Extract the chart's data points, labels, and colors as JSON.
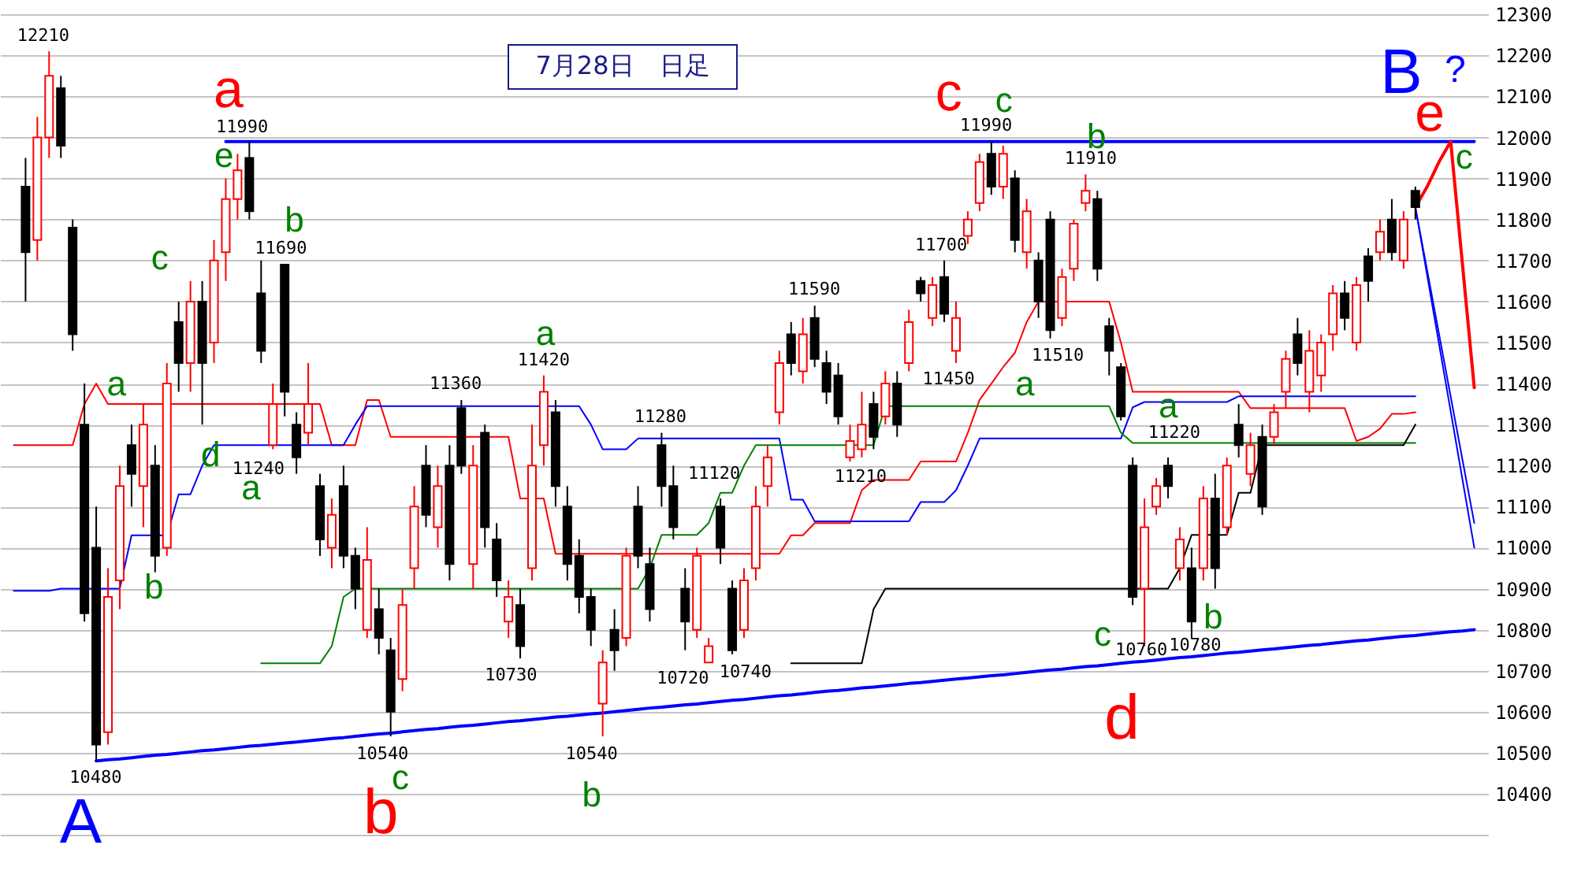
{
  "chart_data": {
    "type": "candlestick",
    "title": "7月28日　日足",
    "categories": [
      null,
      null,
      null,
      null,
      null,
      null,
      null,
      null,
      null,
      null,
      null,
      null,
      null,
      null,
      null,
      null,
      null,
      null,
      null,
      null,
      null,
      null,
      null,
      null,
      null,
      null,
      null,
      null,
      null,
      null,
      null,
      null,
      null,
      null,
      null,
      null,
      null,
      null,
      null,
      null,
      null,
      null,
      null,
      null,
      null,
      null,
      null,
      null,
      null,
      null,
      null,
      null,
      null,
      null,
      null,
      null,
      null,
      null,
      null,
      null,
      null,
      null,
      null,
      null,
      null,
      null,
      null,
      null,
      null,
      null,
      null,
      null,
      null,
      null,
      null,
      null,
      null,
      null,
      null,
      null,
      null,
      null,
      null,
      null,
      null,
      null,
      null,
      null,
      null,
      null,
      null,
      null,
      null,
      null,
      null,
      null,
      null,
      null,
      null,
      null,
      null,
      null,
      null,
      null,
      null,
      null,
      null,
      null,
      null,
      null,
      null,
      null,
      null,
      null,
      null,
      null,
      null,
      null,
      null,
      null,
      null,
      null,
      null,
      null,
      null
    ],
    "ohlc": [
      null,
      [
        11880,
        11950,
        11600,
        11720
      ],
      [
        11750,
        12050,
        11700,
        12000
      ],
      [
        12000,
        12210,
        11950,
        12150
      ],
      [
        12120,
        12150,
        11950,
        11980
      ],
      [
        11780,
        11800,
        11480,
        11520
      ],
      [
        11300,
        11400,
        10820,
        10840
      ],
      [
        11000,
        11100,
        10480,
        10520
      ],
      [
        10550,
        10950,
        10520,
        10880
      ],
      [
        10920,
        11200,
        10850,
        11150
      ],
      [
        11250,
        11300,
        11100,
        11180
      ],
      [
        11150,
        11350,
        11050,
        11300
      ],
      [
        11200,
        11250,
        10940,
        10980
      ],
      [
        11000,
        11450,
        10980,
        11400
      ],
      [
        11550,
        11600,
        11380,
        11450
      ],
      [
        11450,
        11650,
        11380,
        11600
      ],
      [
        11600,
        11650,
        11300,
        11450
      ],
      [
        11500,
        11750,
        11450,
        11700
      ],
      [
        11720,
        11900,
        11650,
        11850
      ],
      [
        11850,
        11960,
        11800,
        11920
      ],
      [
        11950,
        11990,
        11800,
        11820
      ],
      [
        11620,
        11700,
        11450,
        11480
      ],
      [
        11250,
        11400,
        11240,
        11350
      ],
      [
        11690,
        11690,
        11320,
        11380
      ],
      [
        11300,
        11330,
        11180,
        11220
      ],
      [
        11280,
        11450,
        11250,
        11350
      ],
      [
        11150,
        11180,
        10980,
        11020
      ],
      [
        11000,
        11120,
        10950,
        11080
      ],
      [
        11150,
        11200,
        10950,
        10980
      ],
      [
        10980,
        11000,
        10850,
        10900
      ],
      [
        10800,
        11050,
        10780,
        10970
      ],
      [
        10850,
        10900,
        10740,
        10780
      ],
      [
        10750,
        10780,
        10540,
        10600
      ],
      [
        10680,
        10900,
        10650,
        10860
      ],
      [
        10950,
        11150,
        10900,
        11100
      ],
      [
        11200,
        11250,
        11050,
        11080
      ],
      [
        11050,
        11200,
        11000,
        11150
      ],
      [
        11200,
        11250,
        10920,
        10960
      ],
      [
        11340,
        11360,
        11180,
        11200
      ],
      [
        10960,
        11250,
        10900,
        11200
      ],
      [
        11280,
        11300,
        11000,
        11050
      ],
      [
        11020,
        11060,
        10880,
        10920
      ],
      [
        10820,
        10920,
        10780,
        10880
      ],
      [
        10860,
        10900,
        10730,
        10760
      ],
      [
        10950,
        11300,
        10920,
        11200
      ],
      [
        11250,
        11420,
        11200,
        11380
      ],
      [
        11330,
        11360,
        11100,
        11150
      ],
      [
        11100,
        11150,
        10920,
        10960
      ],
      [
        10980,
        11020,
        10840,
        10880
      ],
      [
        10880,
        10900,
        10760,
        10800
      ],
      [
        10620,
        10750,
        10540,
        10720
      ],
      [
        10800,
        10850,
        10700,
        10750
      ],
      [
        10780,
        11000,
        10760,
        10980
      ],
      [
        11100,
        11150,
        10950,
        10980
      ],
      [
        10960,
        11000,
        10820,
        10850
      ],
      [
        11250,
        11280,
        11100,
        11150
      ],
      [
        11150,
        11200,
        11020,
        11050
      ],
      [
        10900,
        10950,
        10750,
        10820
      ],
      [
        10800,
        11000,
        10780,
        10980
      ],
      [
        10720,
        10780,
        10720,
        10760
      ],
      [
        11100,
        11120,
        10960,
        11000
      ],
      [
        10900,
        10920,
        10740,
        10750
      ],
      [
        10800,
        10950,
        10780,
        10920
      ],
      [
        10950,
        11150,
        10920,
        11100
      ],
      [
        11150,
        11250,
        11100,
        11220
      ],
      [
        11330,
        11480,
        11300,
        11450
      ],
      [
        11520,
        11550,
        11420,
        11450
      ],
      [
        11430,
        11560,
        11400,
        11520
      ],
      [
        11560,
        11590,
        11440,
        11460
      ],
      [
        11450,
        11480,
        11350,
        11380
      ],
      [
        11420,
        11450,
        11300,
        11320
      ],
      [
        11220,
        11300,
        11210,
        11260
      ],
      [
        11240,
        11380,
        11220,
        11300
      ],
      [
        11350,
        11380,
        11240,
        11270
      ],
      [
        11320,
        11430,
        11300,
        11400
      ],
      [
        11400,
        11430,
        11270,
        11300
      ],
      [
        11450,
        11580,
        11430,
        11550
      ],
      [
        11650,
        11660,
        11600,
        11620
      ],
      [
        11560,
        11660,
        11540,
        11640
      ],
      [
        11660,
        11700,
        11550,
        11570
      ],
      [
        11480,
        11600,
        11450,
        11560
      ],
      [
        11760,
        11820,
        11740,
        11800
      ],
      [
        11840,
        11960,
        11820,
        11940
      ],
      [
        11960,
        11990,
        11860,
        11880
      ],
      [
        11880,
        11980,
        11850,
        11960
      ],
      [
        11900,
        11920,
        11720,
        11750
      ],
      [
        11720,
        11850,
        11680,
        11820
      ],
      [
        11700,
        11720,
        11560,
        11600
      ],
      [
        11800,
        11820,
        11510,
        11530
      ],
      [
        11560,
        11680,
        11540,
        11660
      ],
      [
        11680,
        11800,
        11650,
        11790
      ],
      [
        11840,
        11910,
        11820,
        11870
      ],
      [
        11850,
        11870,
        11650,
        11680
      ],
      [
        11540,
        11560,
        11420,
        11480
      ],
      [
        11440,
        11450,
        11310,
        11320
      ],
      [
        11200,
        11220,
        10860,
        10880
      ],
      [
        10900,
        11120,
        10760,
        11050
      ],
      [
        11100,
        11170,
        11080,
        11150
      ],
      [
        11200,
        11220,
        11120,
        11150
      ],
      [
        10950,
        11050,
        10920,
        11020
      ],
      [
        10950,
        11000,
        10780,
        10820
      ],
      [
        10950,
        11150,
        10920,
        11120
      ],
      [
        11120,
        11180,
        10900,
        10950
      ],
      [
        11050,
        11220,
        11030,
        11200
      ],
      [
        11300,
        11350,
        11220,
        11250
      ],
      [
        11180,
        11280,
        11150,
        11250
      ],
      [
        11270,
        11300,
        11080,
        11100
      ],
      [
        11270,
        11350,
        11250,
        11330
      ],
      [
        11380,
        11480,
        11340,
        11460
      ],
      [
        11520,
        11560,
        11420,
        11450
      ],
      [
        11380,
        11530,
        11330,
        11480
      ],
      [
        11420,
        11520,
        11380,
        11500
      ],
      [
        11520,
        11640,
        11480,
        11620
      ],
      [
        11620,
        11650,
        11530,
        11560
      ],
      [
        11500,
        11660,
        11480,
        11640
      ],
      [
        11710,
        11730,
        11600,
        11650
      ],
      [
        11720,
        11800,
        11700,
        11770
      ],
      [
        11800,
        11850,
        11700,
        11720
      ],
      [
        11700,
        11820,
        11680,
        11800
      ],
      [
        11870,
        11880,
        11800,
        11830
      ],
      null,
      null,
      null,
      null,
      null
    ],
    "series": [
      {
        "type": "line",
        "color": "#ff0000",
        "values": [
          11250,
          11250,
          11250,
          11250,
          11250,
          11250,
          11350,
          11400,
          11350,
          11350,
          11350,
          11350,
          11350,
          11350,
          11350,
          11350,
          11350,
          11350,
          11350,
          11350,
          11350,
          11350,
          11350,
          11350,
          11350,
          11350,
          11350,
          11250,
          11250,
          11250,
          11360,
          11360,
          11270,
          11270,
          11270,
          11270,
          11270,
          11270,
          11270,
          11270,
          11270,
          11270,
          11270,
          11120,
          11120,
          11120,
          10985,
          10985,
          10985,
          10985,
          10985,
          10985,
          10985,
          10985,
          10985,
          10985,
          10985,
          10985,
          10985,
          10985,
          10985,
          10985,
          10985,
          10985,
          10985,
          10985,
          11030,
          11030,
          11060,
          11060,
          11060,
          11060,
          11140,
          11165,
          11165,
          11165,
          11165,
          11210,
          11210,
          11210,
          11210,
          11280,
          11360,
          11400,
          11440,
          11475,
          11550,
          11600,
          11600,
          11600,
          11600,
          11600,
          11600,
          11600,
          11500,
          11380,
          11380,
          11380,
          11380,
          11380,
          11380,
          11380,
          11380,
          11380,
          11380,
          11340,
          11340,
          11340,
          11340,
          11340,
          11340,
          11340,
          11340,
          11340,
          11260,
          11270,
          11290,
          11326,
          11326,
          11330,
          null,
          null,
          null,
          null,
          null
        ]
      },
      {
        "type": "line",
        "color": "#0000ff",
        "values": [
          10895,
          10895,
          10895,
          10895,
          10900,
          10900,
          10900,
          10900,
          10900,
          10900,
          11030,
          11030,
          11030,
          11030,
          11130,
          11130,
          11200,
          11250,
          11250,
          11250,
          11250,
          11250,
          11250,
          11250,
          11250,
          11250,
          11250,
          11250,
          11250,
          11300,
          11345,
          11345,
          11345,
          11345,
          11345,
          11345,
          11345,
          11345,
          11345,
          11345,
          11345,
          11345,
          11345,
          11345,
          11345,
          11345,
          11345,
          11345,
          11345,
          11300,
          11240,
          11240,
          11240,
          11266,
          11266,
          11266,
          11266,
          11266,
          11266,
          11266,
          11266,
          11266,
          11266,
          11266,
          11266,
          11266,
          11117,
          11117,
          11064,
          11064,
          11064,
          11064,
          11064,
          11064,
          11064,
          11064,
          11064,
          11111,
          11111,
          11111,
          11140,
          11200,
          11266,
          11266,
          11266,
          11266,
          11266,
          11266,
          11266,
          11266,
          11266,
          11266,
          11266,
          11266,
          11266,
          11342,
          11355,
          11355,
          11355,
          11355,
          11355,
          11355,
          11355,
          11355,
          11369,
          11369,
          11369,
          11369,
          11369,
          11369,
          11369,
          11369,
          11369,
          11369,
          11369,
          11369,
          11369,
          11369,
          11369,
          11369,
          null,
          null,
          null,
          null,
          null
        ]
      },
      {
        "type": "line",
        "color": "#008000",
        "values": [
          null,
          null,
          null,
          null,
          null,
          null,
          null,
          null,
          null,
          null,
          null,
          null,
          null,
          null,
          null,
          null,
          null,
          null,
          null,
          null,
          null,
          10718,
          10718,
          10718,
          10718,
          10718,
          10718,
          10760,
          10880,
          10900,
          10900,
          10900,
          10900,
          10900,
          10900,
          10900,
          10900,
          10900,
          10900,
          10900,
          10900,
          10900,
          10900,
          10900,
          10900,
          10900,
          10900,
          10900,
          10900,
          10900,
          10900,
          10900,
          10900,
          10900,
          10950,
          11031,
          11031,
          11031,
          11031,
          11060,
          11134,
          11134,
          11200,
          11250,
          11250,
          11250,
          11250,
          11250,
          11250,
          11250,
          11250,
          11250,
          11250,
          11250,
          11345,
          11345,
          11345,
          11345,
          11345,
          11345,
          11345,
          11345,
          11345,
          11345,
          11345,
          11345,
          11345,
          11345,
          11345,
          11345,
          11345,
          11345,
          11345,
          11345,
          11280,
          11255,
          11255,
          11255,
          11255,
          11255,
          11255,
          11255,
          11255,
          11255,
          11255,
          11255,
          11255,
          11255,
          11255,
          11255,
          11255,
          11255,
          11255,
          11255,
          11255,
          11255,
          11255,
          11255,
          11255,
          11255,
          null,
          null,
          null,
          null,
          null
        ]
      },
      {
        "type": "line",
        "color": "#000000",
        "values": [
          null,
          null,
          null,
          null,
          null,
          null,
          null,
          null,
          null,
          null,
          null,
          null,
          null,
          null,
          null,
          null,
          null,
          null,
          null,
          null,
          null,
          null,
          null,
          null,
          null,
          null,
          null,
          null,
          null,
          null,
          null,
          null,
          null,
          null,
          null,
          null,
          null,
          null,
          null,
          null,
          null,
          null,
          null,
          null,
          null,
          null,
          null,
          null,
          null,
          null,
          null,
          null,
          null,
          null,
          null,
          null,
          null,
          null,
          null,
          null,
          null,
          null,
          null,
          null,
          null,
          null,
          10718,
          10718,
          10718,
          10718,
          10718,
          10718,
          10718,
          10850,
          10900,
          10900,
          10900,
          10900,
          10900,
          10900,
          10900,
          10900,
          10900,
          10900,
          10900,
          10900,
          10900,
          10900,
          10900,
          10900,
          10900,
          10900,
          10900,
          10900,
          10900,
          10900,
          10900,
          10900,
          10900,
          10950,
          11031,
          11031,
          11031,
          11031,
          11134,
          11134,
          11250,
          11250,
          11250,
          11250,
          11250,
          11250,
          11250,
          11250,
          11250,
          11250,
          11250,
          11250,
          11250,
          11300,
          null,
          null,
          null,
          null,
          null
        ]
      },
      {
        "type": "line",
        "color": "#0000ff",
        "values": [
          null,
          null,
          null,
          null,
          null,
          null,
          null,
          null,
          null,
          null,
          null,
          null,
          null,
          null,
          null,
          null,
          null,
          null,
          11990,
          11990,
          11990,
          11990,
          11990,
          11990,
          11990,
          11990,
          11990,
          11990,
          11990,
          11990,
          11990,
          11990,
          11990,
          11990,
          11990,
          11990,
          11990,
          11990,
          11990,
          11990,
          11990,
          11990,
          11990,
          11990,
          11990,
          11990,
          11990,
          11990,
          11990,
          11990,
          11990,
          11990,
          11990,
          11990,
          11990,
          11990,
          11990,
          11990,
          11990,
          11990,
          11990,
          11990,
          11990,
          11990,
          11990,
          11990,
          11990,
          11990,
          11990,
          11990,
          11990,
          11990,
          11990,
          11990,
          11990,
          11990,
          11990,
          11990,
          11990,
          11990,
          11990,
          11990,
          11990,
          11990,
          11990,
          11990,
          11990,
          11990,
          11990,
          11990,
          11990,
          11990,
          11990,
          11990,
          11990,
          11990,
          11990,
          11990,
          11990,
          11990,
          11990,
          11990,
          11990,
          11990,
          11990,
          11990,
          11990,
          11990,
          11990,
          11990,
          11990,
          11990,
          11990,
          11990,
          11990,
          11990,
          11990,
          11990,
          11990,
          11990,
          11990,
          11990,
          11990,
          11990,
          11990
        ]
      },
      {
        "type": "line",
        "color": "#0000ff",
        "values": [
          null,
          null,
          null,
          null,
          null,
          null,
          null,
          10480,
          10483,
          10485,
          10488,
          10491,
          10494,
          10496,
          10499,
          10502,
          10505,
          10507,
          10510,
          10513,
          10516,
          10518,
          10521,
          10524,
          10526,
          10529,
          10532,
          10535,
          10537,
          10540,
          10543,
          10546,
          10548,
          10551,
          10554,
          10557,
          10559,
          10562,
          10565,
          10567,
          10570,
          10573,
          10576,
          10578,
          10581,
          10584,
          10587,
          10589,
          10592,
          10595,
          10597,
          10600,
          10603,
          10606,
          10609,
          10611,
          10614,
          10617,
          10619,
          10622,
          10625,
          10628,
          10630,
          10633,
          10636,
          10639,
          10641,
          10644,
          10647,
          10650,
          10652,
          10655,
          10658,
          10660,
          10663,
          10666,
          10669,
          10671,
          10674,
          10677,
          10680,
          10682,
          10685,
          10688,
          10690,
          10693,
          10696,
          10699,
          10702,
          10704,
          10707,
          10710,
          10712,
          10715,
          10718,
          10721,
          10723,
          10726,
          10729,
          10732,
          10734,
          10737,
          10740,
          10743,
          10745,
          10748,
          10751,
          10753,
          10756,
          10759,
          10762,
          10764,
          10767,
          10770,
          10773,
          10775,
          10778,
          10781,
          10784,
          10786,
          10789,
          10792,
          10795,
          10797,
          10800
        ]
      },
      {
        "type": "line",
        "color": "#ff0000",
        "values": [
          null,
          null,
          null,
          null,
          null,
          null,
          null,
          null,
          null,
          null,
          null,
          null,
          null,
          null,
          null,
          null,
          null,
          null,
          null,
          null,
          null,
          null,
          null,
          null,
          null,
          null,
          null,
          null,
          null,
          null,
          null,
          null,
          null,
          null,
          null,
          null,
          null,
          null,
          null,
          null,
          null,
          null,
          null,
          null,
          null,
          null,
          null,
          null,
          null,
          null,
          null,
          null,
          null,
          null,
          null,
          null,
          null,
          null,
          null,
          null,
          null,
          null,
          null,
          null,
          null,
          null,
          null,
          null,
          null,
          null,
          null,
          null,
          null,
          null,
          null,
          null,
          null,
          null,
          null,
          null,
          null,
          null,
          null,
          null,
          null,
          null,
          null,
          null,
          null,
          null,
          null,
          null,
          null,
          null,
          null,
          null,
          null,
          null,
          null,
          null,
          null,
          null,
          null,
          null,
          null,
          null,
          null,
          null,
          null,
          null,
          null,
          null,
          null,
          null,
          null,
          null,
          null,
          null,
          null,
          11830,
          11880,
          11940,
          11990,
          11690,
          11390
        ]
      },
      {
        "type": "line",
        "color": "#0000ff",
        "values": [
          null,
          null,
          null,
          null,
          null,
          null,
          null,
          null,
          null,
          null,
          null,
          null,
          null,
          null,
          null,
          null,
          null,
          null,
          null,
          null,
          null,
          null,
          null,
          null,
          null,
          null,
          null,
          null,
          null,
          null,
          null,
          null,
          null,
          null,
          null,
          null,
          null,
          null,
          null,
          null,
          null,
          null,
          null,
          null,
          null,
          null,
          null,
          null,
          null,
          null,
          null,
          null,
          null,
          null,
          null,
          null,
          null,
          null,
          null,
          null,
          null,
          null,
          null,
          null,
          null,
          null,
          null,
          null,
          null,
          null,
          null,
          null,
          null,
          null,
          null,
          null,
          null,
          null,
          null,
          null,
          null,
          null,
          null,
          null,
          null,
          null,
          null,
          null,
          null,
          null,
          null,
          null,
          null,
          null,
          null,
          null,
          null,
          null,
          null,
          null,
          null,
          null,
          null,
          null,
          null,
          null,
          null,
          null,
          null,
          null,
          null,
          null,
          null,
          null,
          null,
          null,
          null,
          null,
          null,
          11830,
          11664,
          11498,
          11332,
          11166,
          11000
        ]
      },
      {
        "type": "line",
        "color": "#0000ff",
        "values": [
          null,
          null,
          null,
          null,
          null,
          null,
          null,
          null,
          null,
          null,
          null,
          null,
          null,
          null,
          null,
          null,
          null,
          null,
          null,
          null,
          null,
          null,
          null,
          null,
          null,
          null,
          null,
          null,
          null,
          null,
          null,
          null,
          null,
          null,
          null,
          null,
          null,
          null,
          null,
          null,
          null,
          null,
          null,
          null,
          null,
          null,
          null,
          null,
          null,
          null,
          null,
          null,
          null,
          null,
          null,
          null,
          null,
          null,
          null,
          null,
          null,
          null,
          null,
          null,
          null,
          null,
          null,
          null,
          null,
          null,
          null,
          null,
          null,
          null,
          null,
          null,
          null,
          null,
          null,
          null,
          null,
          null,
          null,
          null,
          null,
          null,
          null,
          null,
          null,
          null,
          null,
          null,
          null,
          null,
          null,
          null,
          null,
          null,
          null,
          null,
          null,
          null,
          null,
          null,
          null,
          null,
          null,
          null,
          null,
          null,
          null,
          null,
          null,
          null,
          null,
          null,
          null,
          null,
          null,
          11830,
          11676,
          11522,
          11368,
          11214,
          11060
        ]
      }
    ],
    "ylim": [
      10185,
      12335
    ],
    "yticks": [
      {
        "value": 10300,
        "label": null
      },
      10400,
      10500,
      10600,
      10700,
      10800,
      10900,
      11000,
      11100,
      11200,
      11300,
      11400,
      11500,
      11600,
      11700,
      11800,
      11900,
      12000,
      12100,
      12200,
      12300
    ],
    "grid": "y",
    "annotations": [
      "12210",
      "a",
      "11990",
      "e",
      "c",
      "b",
      "11690",
      "a",
      "d",
      "11240",
      "a",
      "b",
      "10480",
      "A",
      "11360",
      "a",
      "11420",
      "10730",
      "10540",
      "c",
      "b",
      "11280",
      "11120",
      "10720",
      "10740",
      "10540",
      "b",
      "11590",
      "11210",
      "11700",
      "11450",
      "c",
      "c",
      "11990",
      "b",
      "11910",
      "11510",
      "a",
      "11220",
      "a",
      "c",
      "10760",
      "d",
      "10780",
      "b",
      "B",
      "?",
      "e",
      "c"
    ]
  }
}
